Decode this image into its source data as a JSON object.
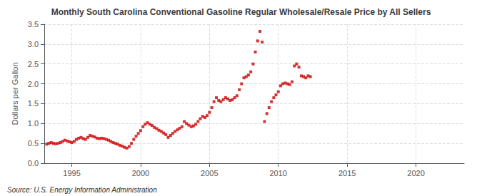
{
  "chart_data": {
    "type": "scatter",
    "title": "Monthly South Carolina Conventional Gasoline Regular Wholesale/Resale Price by All Sellers",
    "ylabel": "Dollars per Gallon",
    "annotations": [
      "Source: U.S. Energy Information Administration"
    ],
    "color": "#cc0000",
    "marker": "square",
    "grid": true,
    "xlim": [
      1993.0,
      2023.5
    ],
    "xticks": [
      1995,
      2000,
      2005,
      2010,
      2015,
      2020
    ],
    "ylim": [
      0.0,
      3.5
    ],
    "yticks": [
      {
        "value": 0.0,
        "label": "0.0"
      },
      0.5,
      {
        "value": 1.0,
        "label": "1.0"
      },
      1.5,
      {
        "value": 2.0,
        "label": "2.0"
      },
      2.5,
      {
        "value": 3.0,
        "label": "3.0"
      },
      3.5
    ],
    "x": [
      1993.17,
      1993.33,
      1993.5,
      1993.67,
      1993.83,
      1994.0,
      1994.17,
      1994.33,
      1994.5,
      1994.67,
      1994.83,
      1995.0,
      1995.17,
      1995.33,
      1995.5,
      1995.67,
      1995.83,
      1996.0,
      1996.17,
      1996.33,
      1996.5,
      1996.67,
      1996.83,
      1997.0,
      1997.17,
      1997.33,
      1997.5,
      1997.67,
      1997.83,
      1998.0,
      1998.17,
      1998.33,
      1998.5,
      1998.67,
      1998.83,
      1999.0,
      1999.17,
      1999.33,
      1999.5,
      1999.67,
      1999.83,
      2000.0,
      2000.17,
      2000.33,
      2000.5,
      2000.67,
      2000.83,
      2001.0,
      2001.17,
      2001.33,
      2001.5,
      2001.67,
      2001.83,
      2002.0,
      2002.17,
      2002.33,
      2002.5,
      2002.67,
      2002.83,
      2003.0,
      2003.17,
      2003.33,
      2003.5,
      2003.67,
      2003.83,
      2004.0,
      2004.17,
      2004.33,
      2004.5,
      2004.67,
      2004.83,
      2005.0,
      2005.17,
      2005.33,
      2005.5,
      2005.67,
      2005.83,
      2006.0,
      2006.17,
      2006.33,
      2006.5,
      2006.67,
      2006.83,
      2007.0,
      2007.17,
      2007.33,
      2007.5,
      2007.67,
      2007.83,
      2008.0,
      2008.17,
      2008.33,
      2008.5,
      2008.67,
      2008.83,
      2009.0,
      2009.17,
      2009.33,
      2009.5,
      2009.67,
      2009.83,
      2010.0,
      2010.17,
      2010.33,
      2010.5,
      2010.67,
      2010.83,
      2011.0,
      2011.17,
      2011.33,
      2011.5,
      2011.67,
      2011.83,
      2012.0,
      2012.17,
      2012.33
    ],
    "values": [
      0.48,
      0.5,
      0.52,
      0.5,
      0.49,
      0.5,
      0.52,
      0.55,
      0.58,
      0.56,
      0.54,
      0.52,
      0.55,
      0.6,
      0.63,
      0.65,
      0.62,
      0.6,
      0.65,
      0.7,
      0.68,
      0.66,
      0.63,
      0.62,
      0.63,
      0.62,
      0.6,
      0.58,
      0.55,
      0.52,
      0.5,
      0.48,
      0.45,
      0.43,
      0.4,
      0.38,
      0.42,
      0.5,
      0.6,
      0.68,
      0.75,
      0.82,
      0.92,
      0.98,
      1.02,
      0.98,
      0.95,
      0.9,
      0.87,
      0.83,
      0.8,
      0.76,
      0.72,
      0.65,
      0.7,
      0.75,
      0.8,
      0.84,
      0.88,
      0.92,
      1.05,
      1.0,
      0.96,
      0.92,
      0.94,
      0.98,
      1.05,
      1.12,
      1.18,
      1.15,
      1.2,
      1.28,
      1.4,
      1.55,
      1.65,
      1.58,
      1.55,
      1.6,
      1.65,
      1.62,
      1.58,
      1.6,
      1.65,
      1.7,
      1.85,
      2.0,
      2.15,
      2.18,
      2.22,
      2.3,
      2.5,
      2.8,
      3.08,
      3.32,
      3.05,
      1.05,
      1.25,
      1.4,
      1.55,
      1.65,
      1.72,
      1.8,
      1.95,
      2.0,
      2.02,
      2.0,
      1.98,
      2.05,
      2.45,
      2.5,
      2.42,
      2.2,
      2.18,
      2.15,
      2.2,
      2.18
    ]
  }
}
